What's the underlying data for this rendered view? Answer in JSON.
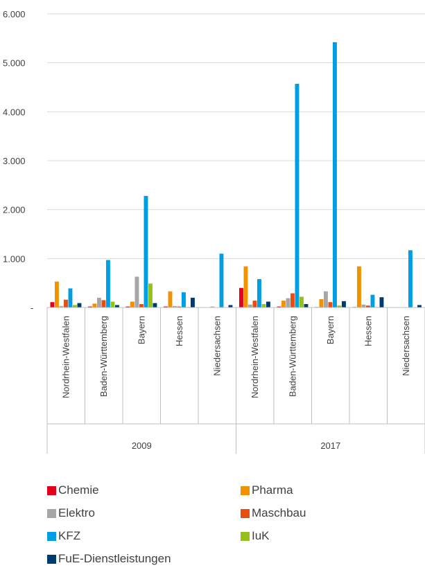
{
  "chart_data": {
    "type": "bar",
    "title": "",
    "xlabel": "",
    "ylabel": "",
    "ylim": [
      0,
      6000
    ],
    "y_ticks": [
      {
        "value": 0,
        "label": "-"
      },
      {
        "value": 1000,
        "label": "1.000"
      },
      {
        "value": 2000,
        "label": "2.000"
      },
      {
        "value": 3000,
        "label": "3.000"
      },
      {
        "value": 4000,
        "label": "4.000"
      },
      {
        "value": 5000,
        "label": "5.000"
      },
      {
        "value": 6000,
        "label": "6.000"
      }
    ],
    "grid": true,
    "legend_position": "bottom",
    "groups": [
      {
        "label": "2009",
        "categories": [
          "Nordrhein-Westfalen",
          "Baden-Württemberg",
          "Bayern",
          "Hessen",
          "Niedersachsen"
        ]
      },
      {
        "label": "2017",
        "categories": [
          "Nordrhein-Westfalen",
          "Baden-Württemberg",
          "Bayern",
          "Hessen",
          "Niedersachsen"
        ]
      }
    ],
    "series": [
      {
        "name": "Chemie",
        "color": "#E2001A",
        "values": [
          110,
          20,
          20,
          20,
          0,
          400,
          20,
          10,
          10,
          0
        ]
      },
      {
        "name": "Pharma",
        "color": "#F39200",
        "values": [
          530,
          80,
          120,
          330,
          0,
          840,
          140,
          170,
          840,
          0
        ]
      },
      {
        "name": "Elektro",
        "color": "#A6A6A6",
        "values": [
          30,
          200,
          630,
          30,
          20,
          60,
          190,
          330,
          60,
          0
        ]
      },
      {
        "name": "Maschbau",
        "color": "#E84E0F",
        "values": [
          160,
          150,
          70,
          20,
          0,
          140,
          290,
          110,
          40,
          0
        ]
      },
      {
        "name": "KFZ",
        "color": "#009EE3",
        "values": [
          390,
          970,
          2280,
          310,
          1100,
          580,
          4570,
          5420,
          260,
          1170
        ]
      },
      {
        "name": "IuK",
        "color": "#95C11F",
        "values": [
          50,
          120,
          490,
          10,
          0,
          70,
          220,
          40,
          10,
          0
        ]
      },
      {
        "name": "FuE-Dienstleistungen",
        "color": "#003B6F",
        "values": [
          90,
          50,
          90,
          200,
          50,
          120,
          70,
          130,
          210,
          50
        ]
      }
    ]
  }
}
